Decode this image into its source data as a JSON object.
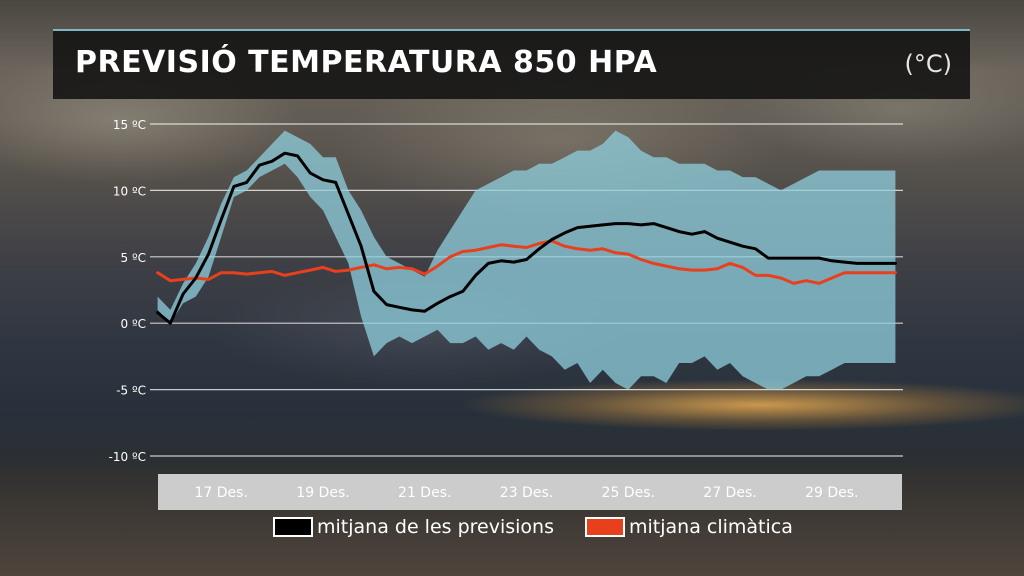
{
  "header": {
    "title": "PREVISIÓ TEMPERATURA 850 HPA",
    "unit": "(°C)"
  },
  "colors": {
    "forecast_mean": "#000000",
    "climate_mean": "#e8401c",
    "spread": "#8fcfde",
    "gridline": "#ffffff",
    "axis_bar": "#e1e1e1"
  },
  "legend": {
    "items": [
      {
        "label": "mitjana de les previsions",
        "color": "#000000"
      },
      {
        "label": "mitjana climàtica",
        "color": "#e8401c"
      }
    ]
  },
  "chart_data": {
    "type": "line",
    "title": "PREVISIÓ TEMPERATURA 850 HPA",
    "ylabel": "(°C)",
    "xlabel": "",
    "ylim": [
      -10,
      15
    ],
    "yticks": [
      15,
      10,
      5,
      0,
      -5,
      -10
    ],
    "ytick_labels": [
      "15 ºC",
      "10 ºC",
      "5 ºC",
      "0 ºC",
      "-5 ºC",
      "-10 ºC"
    ],
    "xticks": [
      1,
      3,
      5,
      7,
      9,
      11,
      13
    ],
    "xtick_labels": [
      "17 Des.",
      "19 Des.",
      "21 Des.",
      "23 Des.",
      "25 Des.",
      "27 Des.",
      "29 Des."
    ],
    "xlim": [
      -0.4,
      14.4
    ],
    "grid": "horizontal",
    "legend_position": "bottom",
    "series": [
      {
        "name": "mitjana de les previsions",
        "x": [
          -0.25,
          0.0,
          0.25,
          0.5,
          0.75,
          1.0,
          1.25,
          1.5,
          1.75,
          2.0,
          2.25,
          2.5,
          2.75,
          3.0,
          3.25,
          3.5,
          3.75,
          4.0,
          4.25,
          4.5,
          4.75,
          5.0,
          5.25,
          5.5,
          5.75,
          6.0,
          6.25,
          6.5,
          6.75,
          7.0,
          7.25,
          7.5,
          7.75,
          8.0,
          8.25,
          8.5,
          8.75,
          9.0,
          9.25,
          9.5,
          9.75,
          10.0,
          10.25,
          10.5,
          10.75,
          11.0,
          11.25,
          11.5,
          11.75,
          12.0,
          12.25,
          12.5,
          12.75,
          13.0,
          13.25,
          13.5,
          13.75,
          14.0,
          14.25
        ],
        "values": [
          0.8,
          0.0,
          2.2,
          3.4,
          5.2,
          7.8,
          10.3,
          10.6,
          11.9,
          12.2,
          12.8,
          12.6,
          11.3,
          10.8,
          10.6,
          8.2,
          5.8,
          2.4,
          1.4,
          1.2,
          1.0,
          0.9,
          1.5,
          2.0,
          2.4,
          3.6,
          4.5,
          4.7,
          4.6,
          4.8,
          5.6,
          6.3,
          6.8,
          7.2,
          7.3,
          7.4,
          7.5,
          7.5,
          7.4,
          7.5,
          7.2,
          6.9,
          6.7,
          6.9,
          6.4,
          6.1,
          5.8,
          5.6,
          4.9,
          4.9,
          4.9,
          4.9,
          4.9,
          4.7,
          4.6,
          4.5,
          4.5,
          4.5,
          4.5
        ]
      },
      {
        "name": "mitjana climàtica",
        "x": [
          -0.25,
          0.0,
          0.25,
          0.5,
          0.75,
          1.0,
          1.25,
          1.5,
          1.75,
          2.0,
          2.25,
          2.5,
          2.75,
          3.0,
          3.25,
          3.5,
          3.75,
          4.0,
          4.25,
          4.5,
          4.75,
          5.0,
          5.25,
          5.5,
          5.75,
          6.0,
          6.25,
          6.5,
          6.75,
          7.0,
          7.25,
          7.5,
          7.75,
          8.0,
          8.25,
          8.5,
          8.75,
          9.0,
          9.25,
          9.5,
          9.75,
          10.0,
          10.25,
          10.5,
          10.75,
          11.0,
          11.25,
          11.5,
          11.75,
          12.0,
          12.25,
          12.5,
          12.75,
          13.0,
          13.25,
          13.5,
          13.75,
          14.0,
          14.25
        ],
        "values": [
          3.8,
          3.2,
          3.3,
          3.4,
          3.3,
          3.8,
          3.8,
          3.7,
          3.8,
          3.9,
          3.6,
          3.8,
          4.0,
          4.2,
          3.9,
          4.0,
          4.2,
          4.4,
          4.1,
          4.2,
          4.1,
          3.7,
          4.3,
          5.0,
          5.4,
          5.5,
          5.7,
          5.9,
          5.8,
          5.7,
          6.0,
          6.2,
          5.8,
          5.6,
          5.5,
          5.6,
          5.3,
          5.2,
          4.8,
          4.5,
          4.3,
          4.1,
          4.0,
          4.0,
          4.1,
          4.5,
          4.2,
          3.6,
          3.6,
          3.4,
          3.0,
          3.2,
          3.0,
          3.4,
          3.8,
          3.8,
          3.8,
          3.8,
          3.8
        ]
      },
      {
        "name": "",
        "kind": "band",
        "x": [
          -0.25,
          0.0,
          0.25,
          0.5,
          0.75,
          1.0,
          1.25,
          1.5,
          1.75,
          2.0,
          2.25,
          2.5,
          2.75,
          3.0,
          3.25,
          3.5,
          3.75,
          4.0,
          4.25,
          4.5,
          4.75,
          5.0,
          5.25,
          5.5,
          5.75,
          6.0,
          6.25,
          6.5,
          6.75,
          7.0,
          7.25,
          7.5,
          7.75,
          8.0,
          8.25,
          8.5,
          8.75,
          9.0,
          9.25,
          9.5,
          9.75,
          10.0,
          10.25,
          10.5,
          10.75,
          11.0,
          11.25,
          11.5,
          11.75,
          12.0,
          12.25,
          12.5,
          12.75,
          13.0,
          13.25,
          13.5,
          13.75,
          14.0,
          14.25
        ],
        "upper": [
          2.0,
          1.0,
          3.0,
          4.5,
          6.5,
          9.0,
          11.0,
          11.5,
          12.5,
          13.5,
          14.5,
          14.0,
          13.5,
          12.5,
          12.5,
          10.0,
          8.5,
          6.5,
          5.0,
          4.5,
          4.0,
          3.5,
          5.5,
          7.0,
          8.5,
          10.0,
          10.5,
          11.0,
          11.5,
          11.5,
          12.0,
          12.0,
          12.5,
          13.0,
          13.0,
          13.5,
          14.5,
          14.0,
          13.0,
          12.5,
          12.5,
          12.0,
          12.0,
          12.0,
          11.5,
          11.5,
          11.0,
          11.0,
          10.5,
          10.0,
          10.5,
          11.0,
          11.5,
          11.5,
          11.5,
          11.5,
          11.5,
          11.5,
          11.5
        ],
        "lower": [
          1.0,
          0.0,
          1.5,
          2.0,
          3.5,
          6.5,
          9.5,
          10.0,
          11.0,
          11.5,
          12.0,
          11.0,
          9.5,
          8.5,
          6.5,
          4.5,
          0.5,
          -2.5,
          -1.5,
          -1.0,
          -1.5,
          -1.0,
          -0.5,
          -1.5,
          -1.5,
          -1.0,
          -2.0,
          -1.5,
          -2.0,
          -1.0,
          -2.0,
          -2.5,
          -3.5,
          -3.0,
          -4.5,
          -3.5,
          -4.5,
          -5.0,
          -4.0,
          -4.0,
          -4.5,
          -3.0,
          -3.0,
          -2.5,
          -3.5,
          -3.0,
          -4.0,
          -4.5,
          -5.0,
          -5.0,
          -4.5,
          -4.0,
          -4.0,
          -3.5,
          -3.0,
          -3.0,
          -3.0,
          -3.0,
          -3.0
        ]
      }
    ]
  }
}
